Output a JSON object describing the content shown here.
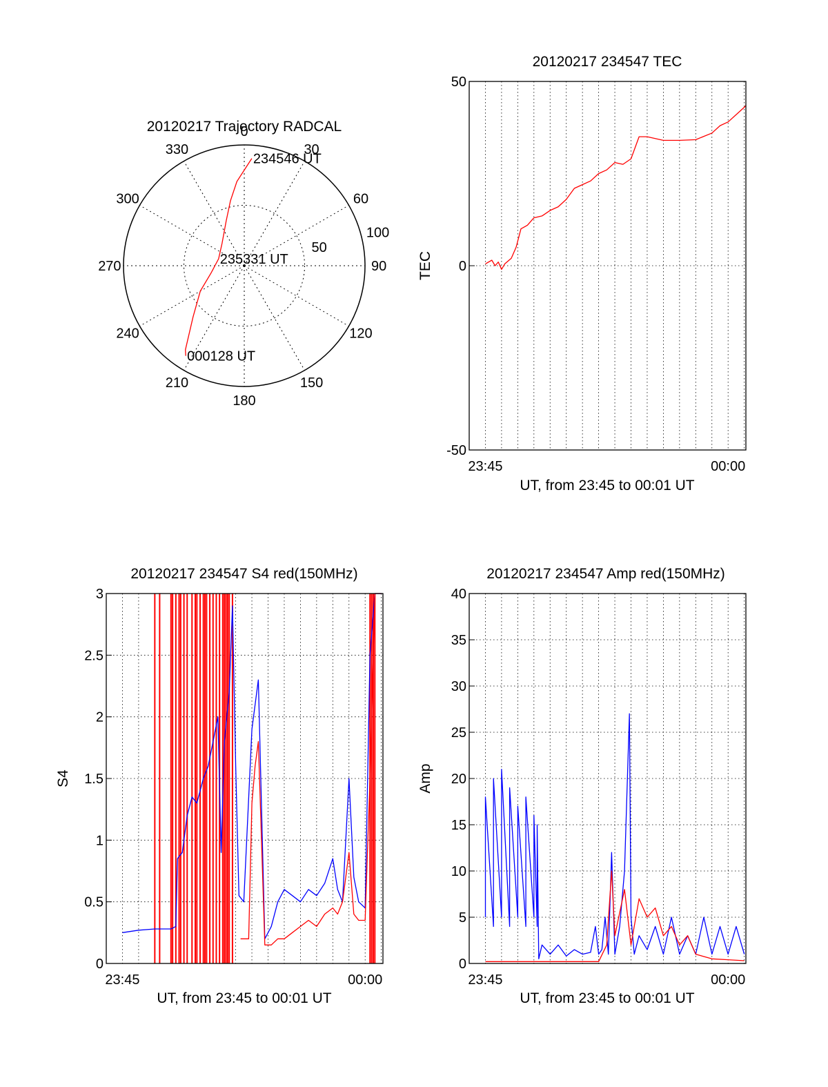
{
  "chart_data": [
    {
      "id": "trajectory",
      "type": "polar",
      "title": "20120217 Trajectory RADCAL",
      "angle_labels": [
        "0",
        "30",
        "60",
        "90",
        "120",
        "150",
        "180",
        "210",
        "240",
        "270",
        "300",
        "330"
      ],
      "angles": [
        0,
        30,
        60,
        90,
        120,
        150,
        180,
        210,
        240,
        270,
        300,
        330
      ],
      "radial_labels": [
        "50",
        "100"
      ],
      "radial_values": [
        50,
        100
      ],
      "r_max": 100,
      "series": [
        {
          "color": "#ff0000",
          "points": [
            [
              4,
              89
            ],
            [
              355,
              70
            ],
            [
              348,
              55
            ],
            [
              338,
              40
            ],
            [
              315,
              26
            ],
            [
              285,
              22
            ],
            [
              258,
              28
            ],
            [
              240,
              42
            ],
            [
              225,
              60
            ],
            [
              215,
              85
            ],
            [
              213,
              89
            ]
          ]
        }
      ],
      "annotations": [
        {
          "text": "234546 UT",
          "az": 4,
          "r": 89
        },
        {
          "text": "235331 UT",
          "az": 285,
          "r": 22
        },
        {
          "text": "000128 UT",
          "az": 213,
          "r": 89
        }
      ]
    },
    {
      "id": "tec",
      "type": "line",
      "title": "20120217 234547 TEC",
      "xlabel": "UT, from 23:45 to 00:01 UT",
      "ylabel": "TEC",
      "x_tick_labels": [
        "23:45",
        "00:00"
      ],
      "x_ticks_min": [
        0,
        15
      ],
      "y_tick_labels": [
        "50",
        "0",
        "-50"
      ],
      "y_ticks": [
        50,
        0,
        -50
      ],
      "xlim_min": [
        -1,
        16.1
      ],
      "ylim": [
        -50,
        50
      ],
      "series": [
        {
          "color": "#ff0000",
          "points": [
            [
              0,
              0.5
            ],
            [
              0.4,
              1.5
            ],
            [
              0.6,
              0
            ],
            [
              0.8,
              1
            ],
            [
              1,
              -1
            ],
            [
              1.2,
              0.5
            ],
            [
              1.6,
              2
            ],
            [
              1.9,
              5
            ],
            [
              2.2,
              10
            ],
            [
              2.6,
              11
            ],
            [
              3,
              13
            ],
            [
              3.5,
              13.5
            ],
            [
              4,
              15
            ],
            [
              4.5,
              16
            ],
            [
              5,
              18
            ],
            [
              5.5,
              21
            ],
            [
              6,
              22
            ],
            [
              6.5,
              23
            ],
            [
              7,
              25
            ],
            [
              7.5,
              26
            ],
            [
              8,
              28
            ],
            [
              8.5,
              27.5
            ],
            [
              9,
              29
            ],
            [
              9.5,
              35
            ],
            [
              10,
              35
            ],
            [
              11,
              34
            ],
            [
              12,
              34
            ],
            [
              13,
              34.2
            ],
            [
              14,
              36
            ],
            [
              14.5,
              38
            ],
            [
              15,
              39
            ],
            [
              15.5,
              41
            ],
            [
              16,
              43
            ],
            [
              16.1,
              43.5
            ]
          ]
        }
      ]
    },
    {
      "id": "s4",
      "type": "line",
      "title": "20120217 234547 S4 red(150MHz)",
      "xlabel": "UT, from 23:45 to 00:01 UT",
      "ylabel": "S4",
      "x_tick_labels": [
        "23:45",
        "00:00"
      ],
      "x_ticks_min": [
        0,
        15
      ],
      "y_tick_labels": [
        "0",
        "0.5",
        "1",
        "1.5",
        "2",
        "2.5",
        "3"
      ],
      "y_ticks": [
        0,
        0.5,
        1,
        1.5,
        2,
        2.5,
        3
      ],
      "xlim_min": [
        -1,
        16.1
      ],
      "ylim": [
        0,
        3
      ],
      "red_spikes_min": [
        2.0,
        2.3,
        3.0,
        3.1,
        3.3,
        3.5,
        3.6,
        3.8,
        4.0,
        4.3,
        4.5,
        4.6,
        4.8,
        5.0,
        5.1,
        5.2,
        5.4,
        5.6,
        5.8,
        6.0,
        6.2,
        6.3,
        6.4,
        6.5,
        6.6,
        6.8,
        15.3,
        15.4,
        15.5,
        15.6
      ],
      "series": [
        {
          "color": "#0000ff",
          "points": [
            [
              0,
              0.25
            ],
            [
              1,
              0.27
            ],
            [
              2,
              0.28
            ],
            [
              3,
              0.28
            ],
            [
              3.3,
              0.3
            ],
            [
              3.4,
              0.85
            ],
            [
              3.7,
              0.9
            ],
            [
              4,
              1.2
            ],
            [
              4.3,
              1.35
            ],
            [
              4.6,
              1.3
            ],
            [
              5,
              1.5
            ],
            [
              5.3,
              1.6
            ],
            [
              5.6,
              1.8
            ],
            [
              5.9,
              2.0
            ],
            [
              6.1,
              0.9
            ],
            [
              6.3,
              1.8
            ],
            [
              6.6,
              2.2
            ],
            [
              6.8,
              2.9
            ],
            [
              7.0,
              1.6
            ],
            [
              7.2,
              0.55
            ],
            [
              7.5,
              0.5
            ],
            [
              8.0,
              1.9
            ],
            [
              8.4,
              2.3
            ],
            [
              8.8,
              0.2
            ],
            [
              9.2,
              0.3
            ],
            [
              9.6,
              0.5
            ],
            [
              10,
              0.6
            ],
            [
              10.5,
              0.55
            ],
            [
              11,
              0.5
            ],
            [
              11.5,
              0.6
            ],
            [
              12,
              0.55
            ],
            [
              12.5,
              0.65
            ],
            [
              13,
              0.85
            ],
            [
              13.3,
              0.6
            ],
            [
              13.6,
              0.5
            ],
            [
              14,
              1.5
            ],
            [
              14.3,
              0.7
            ],
            [
              14.6,
              0.5
            ],
            [
              15,
              0.45
            ],
            [
              15.3,
              2.5
            ],
            [
              15.6,
              3
            ],
            [
              15.8,
              3
            ],
            [
              16.0,
              3
            ]
          ]
        },
        {
          "color": "#ff0000",
          "points": [
            [
              7.3,
              0.2
            ],
            [
              7.8,
              0.2
            ],
            [
              8.0,
              1.3
            ],
            [
              8.2,
              1.6
            ],
            [
              8.4,
              1.8
            ],
            [
              8.8,
              0.15
            ],
            [
              9.2,
              0.15
            ],
            [
              9.6,
              0.2
            ],
            [
              10,
              0.2
            ],
            [
              10.5,
              0.25
            ],
            [
              11,
              0.3
            ],
            [
              11.5,
              0.35
            ],
            [
              12,
              0.3
            ],
            [
              12.5,
              0.4
            ],
            [
              13,
              0.45
            ],
            [
              13.3,
              0.4
            ],
            [
              13.6,
              0.5
            ],
            [
              14,
              0.9
            ],
            [
              14.3,
              0.4
            ],
            [
              14.6,
              0.35
            ],
            [
              15,
              0.35
            ],
            [
              15.3,
              1.5
            ],
            [
              15.6,
              3
            ],
            [
              16.0,
              3
            ]
          ]
        }
      ]
    },
    {
      "id": "amp",
      "type": "line",
      "title": "20120217 234547 Amp red(150MHz)",
      "xlabel": "UT, from 23:45 to 00:01 UT",
      "ylabel": "Amp",
      "x_tick_labels": [
        "23:45",
        "00:00"
      ],
      "x_ticks_min": [
        0,
        15
      ],
      "y_tick_labels": [
        "0",
        "5",
        "10",
        "15",
        "20",
        "25",
        "30",
        "35",
        "40"
      ],
      "y_ticks": [
        0,
        5,
        10,
        15,
        20,
        25,
        30,
        35,
        40
      ],
      "xlim_min": [
        -1,
        16.1
      ],
      "ylim": [
        0,
        40
      ],
      "series": [
        {
          "color": "#0000ff",
          "points": [
            [
              0,
              5
            ],
            [
              0,
              18
            ],
            [
              0.5,
              4
            ],
            [
              0.5,
              20
            ],
            [
              1,
              5
            ],
            [
              1,
              21
            ],
            [
              1.5,
              4
            ],
            [
              1.5,
              19
            ],
            [
              2,
              5
            ],
            [
              2,
              17
            ],
            [
              2.5,
              4
            ],
            [
              2.5,
              18
            ],
            [
              3,
              5
            ],
            [
              3,
              16
            ],
            [
              3.2,
              4
            ],
            [
              3.2,
              15
            ],
            [
              3.3,
              0.5
            ],
            [
              3.5,
              2
            ],
            [
              4,
              1
            ],
            [
              4.5,
              2
            ],
            [
              5,
              0.8
            ],
            [
              5.5,
              1.5
            ],
            [
              6,
              1
            ],
            [
              6.5,
              1.2
            ],
            [
              6.8,
              4
            ],
            [
              7.0,
              1
            ],
            [
              7.2,
              1.5
            ],
            [
              7.4,
              5
            ],
            [
              7.6,
              1
            ],
            [
              7.8,
              12
            ],
            [
              8.0,
              1
            ],
            [
              8.3,
              4
            ],
            [
              8.6,
              10
            ],
            [
              8.9,
              27
            ],
            [
              9.0,
              5
            ],
            [
              9.2,
              1
            ],
            [
              9.5,
              3
            ],
            [
              10,
              1.5
            ],
            [
              10.5,
              4
            ],
            [
              11,
              1
            ],
            [
              11.5,
              5
            ],
            [
              12,
              1
            ],
            [
              12.5,
              3
            ],
            [
              13,
              1
            ],
            [
              13.5,
              5
            ],
            [
              14,
              1
            ],
            [
              14.5,
              4
            ],
            [
              15,
              1
            ],
            [
              15.5,
              4
            ],
            [
              16.0,
              1
            ]
          ]
        },
        {
          "color": "#ff0000",
          "points": [
            [
              0,
              0.2
            ],
            [
              1,
              0.2
            ],
            [
              2,
              0.2
            ],
            [
              3,
              0.2
            ],
            [
              3.3,
              0.2
            ],
            [
              7,
              0.2
            ],
            [
              7.5,
              2
            ],
            [
              7.8,
              10
            ],
            [
              8.0,
              3
            ],
            [
              8.6,
              8
            ],
            [
              9.0,
              2
            ],
            [
              9.5,
              7
            ],
            [
              10,
              5
            ],
            [
              10.5,
              6
            ],
            [
              11,
              3
            ],
            [
              11.5,
              4
            ],
            [
              12,
              2
            ],
            [
              12.5,
              3
            ],
            [
              13,
              1
            ],
            [
              14,
              0.5
            ],
            [
              15,
              0.4
            ],
            [
              16,
              0.3
            ]
          ]
        }
      ]
    }
  ]
}
